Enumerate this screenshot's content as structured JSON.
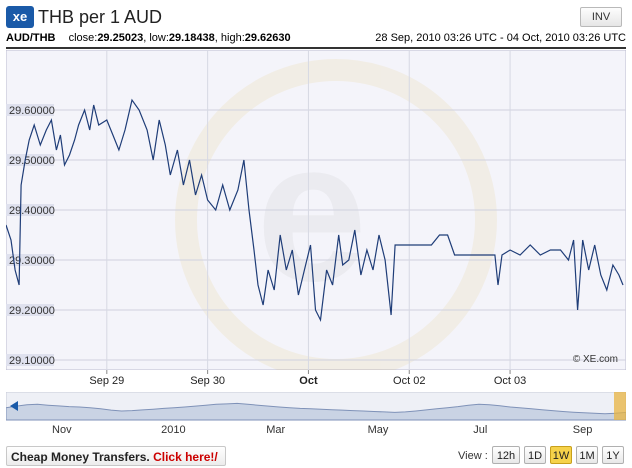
{
  "header": {
    "logo_text": "xe",
    "title": "THB per 1 AUD",
    "inv_label": "INV"
  },
  "info": {
    "pair": "AUD/THB",
    "close_label": "close:",
    "close_value": "29.25023",
    "low_label": "low:",
    "low_value": "29.18438",
    "high_label": "high:",
    "high_value": "29.62630",
    "date_range": "28 Sep, 2010 03:26 UTC - 04 Oct, 2010 03:26 UTC"
  },
  "watermark": "© XE.com",
  "colors": {
    "line": "#1f3d78",
    "plot_bg": "#f4f4fa",
    "nav_fill": "#c9d3e4",
    "nav_line": "#7f92b8",
    "nav_selection": "#e8b440",
    "active_button": "#f6d24a",
    "promo_cta": "#cc0000"
  },
  "chart_data": {
    "type": "line",
    "series_label": "AUD/THB",
    "ylim": [
      29.1,
      29.7
    ],
    "y_ticks": [
      "29.60000",
      "29.50000",
      "29.40000",
      "29.30000",
      "29.20000",
      "29.10000"
    ],
    "y_tick_values": [
      29.6,
      29.5,
      29.4,
      29.3,
      29.2,
      29.1
    ],
    "x_range_days": [
      28.0,
      34.15
    ],
    "x_ticks": [
      {
        "label": "Sep 29",
        "day": 29,
        "bold": false
      },
      {
        "label": "Sep 30",
        "day": 30,
        "bold": false
      },
      {
        "label": "Oct",
        "day": 31,
        "bold": true
      },
      {
        "label": "Oct 02",
        "day": 32,
        "bold": false
      },
      {
        "label": "Oct 03",
        "day": 33,
        "bold": false
      }
    ],
    "points": [
      [
        28.0,
        29.37
      ],
      [
        28.05,
        29.34
      ],
      [
        28.09,
        29.28
      ],
      [
        28.13,
        29.25
      ],
      [
        28.15,
        29.45
      ],
      [
        28.19,
        29.5
      ],
      [
        28.23,
        29.54
      ],
      [
        28.28,
        29.57
      ],
      [
        28.34,
        29.53
      ],
      [
        28.4,
        29.56
      ],
      [
        28.45,
        29.58
      ],
      [
        28.5,
        29.52
      ],
      [
        28.54,
        29.55
      ],
      [
        28.58,
        29.49
      ],
      [
        28.63,
        29.51
      ],
      [
        28.68,
        29.54
      ],
      [
        28.72,
        29.57
      ],
      [
        28.78,
        29.6
      ],
      [
        28.83,
        29.56
      ],
      [
        28.87,
        29.61
      ],
      [
        28.92,
        29.57
      ],
      [
        29.0,
        29.58
      ],
      [
        29.06,
        29.55
      ],
      [
        29.12,
        29.52
      ],
      [
        29.18,
        29.56
      ],
      [
        29.25,
        29.62
      ],
      [
        29.32,
        29.6
      ],
      [
        29.4,
        29.56
      ],
      [
        29.46,
        29.5
      ],
      [
        29.52,
        29.58
      ],
      [
        29.58,
        29.53
      ],
      [
        29.63,
        29.47
      ],
      [
        29.7,
        29.52
      ],
      [
        29.76,
        29.45
      ],
      [
        29.82,
        29.5
      ],
      [
        29.88,
        29.43
      ],
      [
        29.94,
        29.47
      ],
      [
        30.0,
        29.42
      ],
      [
        30.08,
        29.4
      ],
      [
        30.15,
        29.45
      ],
      [
        30.22,
        29.4
      ],
      [
        30.3,
        29.44
      ],
      [
        30.36,
        29.5
      ],
      [
        30.41,
        29.4
      ],
      [
        30.46,
        29.32
      ],
      [
        30.5,
        29.25
      ],
      [
        30.55,
        29.21
      ],
      [
        30.6,
        29.28
      ],
      [
        30.66,
        29.24
      ],
      [
        30.72,
        29.35
      ],
      [
        30.78,
        29.28
      ],
      [
        30.84,
        29.32
      ],
      [
        30.9,
        29.23
      ],
      [
        30.96,
        29.28
      ],
      [
        31.02,
        29.33
      ],
      [
        31.07,
        29.2
      ],
      [
        31.12,
        29.18
      ],
      [
        31.18,
        29.28
      ],
      [
        31.24,
        29.25
      ],
      [
        31.3,
        29.35
      ],
      [
        31.34,
        29.29
      ],
      [
        31.4,
        29.3
      ],
      [
        31.46,
        29.36
      ],
      [
        31.52,
        29.27
      ],
      [
        31.58,
        29.32
      ],
      [
        31.64,
        29.28
      ],
      [
        31.7,
        29.35
      ],
      [
        31.76,
        29.3
      ],
      [
        31.82,
        29.19
      ],
      [
        31.86,
        29.33
      ],
      [
        31.9,
        29.33
      ],
      [
        32.0,
        29.33
      ],
      [
        32.12,
        29.33
      ],
      [
        32.22,
        29.33
      ],
      [
        32.3,
        29.35
      ],
      [
        32.38,
        29.35
      ],
      [
        32.45,
        29.31
      ],
      [
        32.55,
        29.31
      ],
      [
        32.65,
        29.31
      ],
      [
        32.75,
        29.31
      ],
      [
        32.85,
        29.31
      ],
      [
        32.88,
        29.25
      ],
      [
        32.92,
        29.31
      ],
      [
        33.0,
        29.32
      ],
      [
        33.1,
        29.31
      ],
      [
        33.2,
        29.33
      ],
      [
        33.3,
        29.31
      ],
      [
        33.4,
        29.32
      ],
      [
        33.5,
        29.32
      ],
      [
        33.58,
        29.3
      ],
      [
        33.63,
        29.34
      ],
      [
        33.67,
        29.2
      ],
      [
        33.72,
        29.34
      ],
      [
        33.78,
        29.28
      ],
      [
        33.84,
        29.33
      ],
      [
        33.9,
        29.27
      ],
      [
        33.96,
        29.24
      ],
      [
        34.02,
        29.29
      ],
      [
        34.08,
        29.27
      ],
      [
        34.12,
        29.25
      ]
    ]
  },
  "navigator": {
    "labels": [
      "Nov",
      "2010",
      "Mar",
      "May",
      "Jul",
      "Sep"
    ],
    "label_positions": [
      0.09,
      0.27,
      0.435,
      0.6,
      0.765,
      0.93
    ],
    "series": [
      0.55,
      0.62,
      0.68,
      0.7,
      0.66,
      0.63,
      0.6,
      0.58,
      0.55,
      0.5,
      0.44,
      0.4,
      0.42,
      0.45,
      0.48,
      0.52,
      0.55,
      0.58,
      0.62,
      0.66,
      0.7,
      0.72,
      0.74,
      0.7,
      0.66,
      0.62,
      0.58,
      0.55,
      0.52,
      0.5,
      0.48,
      0.46,
      0.44,
      0.42,
      0.4,
      0.38,
      0.36,
      0.34,
      0.36,
      0.4,
      0.45,
      0.5,
      0.55,
      0.6,
      0.66,
      0.7,
      0.68,
      0.64,
      0.58,
      0.54,
      0.5,
      0.46,
      0.42,
      0.38,
      0.35,
      0.32,
      0.3,
      0.28,
      0.3,
      0.34
    ]
  },
  "footer": {
    "promo_text": "Cheap Money Transfers.",
    "promo_cta": "Click here!/",
    "view_label": "View :",
    "buttons": [
      {
        "label": "12h",
        "active": false
      },
      {
        "label": "1D",
        "active": false
      },
      {
        "label": "1W",
        "active": true
      },
      {
        "label": "1M",
        "active": false
      },
      {
        "label": "1Y",
        "active": false
      }
    ]
  }
}
